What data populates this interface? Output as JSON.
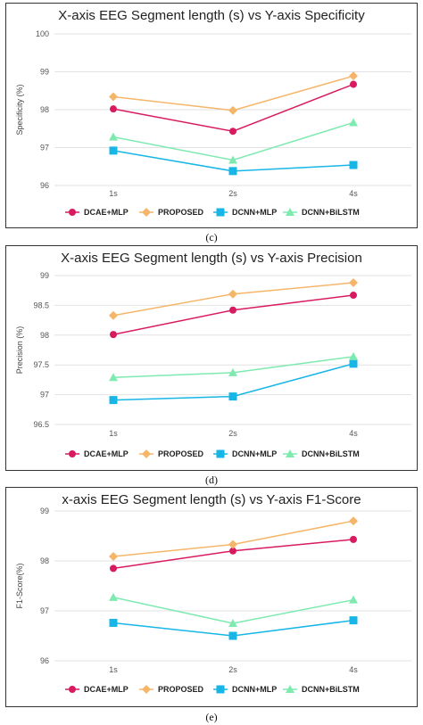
{
  "captions": [
    "(c)",
    "(d)",
    "(e)"
  ],
  "chart_data": [
    {
      "type": "line",
      "title": "X-axis EEG Segment length (s) vs Y-axis Specificity",
      "xlabel": "",
      "ylabel": "Specificity (%)",
      "categories": [
        "1s",
        "2s",
        "4s"
      ],
      "ylim": [
        96,
        100
      ],
      "yticks": [
        "96",
        "97",
        "98",
        "99",
        "100"
      ],
      "grid": true,
      "legend": "bottom",
      "series": [
        {
          "name": "DCAE+MLP",
          "values": [
            98.02,
            97.43,
            98.67
          ],
          "color": "#d81b60",
          "marker": "circle"
        },
        {
          "name": "PROPOSED",
          "values": [
            98.34,
            97.98,
            98.89
          ],
          "color": "#f5b66a",
          "marker": "diamond"
        },
        {
          "name": "DCNN+MLP",
          "values": [
            96.92,
            96.38,
            96.54
          ],
          "color": "#17b6e6",
          "marker": "square"
        },
        {
          "name": "DCNN+BiLSTM",
          "values": [
            97.28,
            96.67,
            97.66
          ],
          "color": "#7eeab0",
          "marker": "triangle"
        }
      ]
    },
    {
      "type": "line",
      "title": "X-axis EEG Segment length (s) vs Y-axis Precision",
      "xlabel": "",
      "ylabel": "Precision (%)",
      "categories": [
        "1s",
        "2s",
        "4s"
      ],
      "ylim": [
        96.5,
        99
      ],
      "yticks": [
        "96.5",
        "97",
        "97.5",
        "98",
        "98.5",
        "99"
      ],
      "grid": true,
      "legend": "bottom",
      "series": [
        {
          "name": "DCAE+MLP",
          "values": [
            98.01,
            98.42,
            98.67
          ],
          "color": "#d81b60",
          "marker": "circle"
        },
        {
          "name": "PROPOSED",
          "values": [
            98.33,
            98.69,
            98.88
          ],
          "color": "#f5b66a",
          "marker": "diamond"
        },
        {
          "name": "DCNN+MLP",
          "values": [
            96.91,
            96.97,
            97.52
          ],
          "color": "#17b6e6",
          "marker": "square"
        },
        {
          "name": "DCNN+BiLSTM",
          "values": [
            97.29,
            97.37,
            97.64
          ],
          "color": "#7eeab0",
          "marker": "triangle"
        }
      ]
    },
    {
      "type": "line",
      "title": "x-axis EEG Segment length (s) vs Y-axis F1-Score",
      "xlabel": "",
      "ylabel": "F1-Score(%)",
      "categories": [
        "1s",
        "2s",
        "4s"
      ],
      "ylim": [
        96,
        99
      ],
      "yticks": [
        "96",
        "97",
        "98",
        "99"
      ],
      "grid": true,
      "legend": "bottom",
      "series": [
        {
          "name": "DCAE+MLP",
          "values": [
            97.85,
            98.2,
            98.43
          ],
          "color": "#d81b60",
          "marker": "circle"
        },
        {
          "name": "PROPOSED",
          "values": [
            98.09,
            98.33,
            98.8
          ],
          "color": "#f5b66a",
          "marker": "diamond"
        },
        {
          "name": "DCNN+MLP",
          "values": [
            96.76,
            96.5,
            96.81
          ],
          "color": "#17b6e6",
          "marker": "square"
        },
        {
          "name": "DCNN+BiLSTM",
          "values": [
            97.27,
            96.75,
            97.22
          ],
          "color": "#7eeab0",
          "marker": "triangle"
        }
      ]
    }
  ]
}
